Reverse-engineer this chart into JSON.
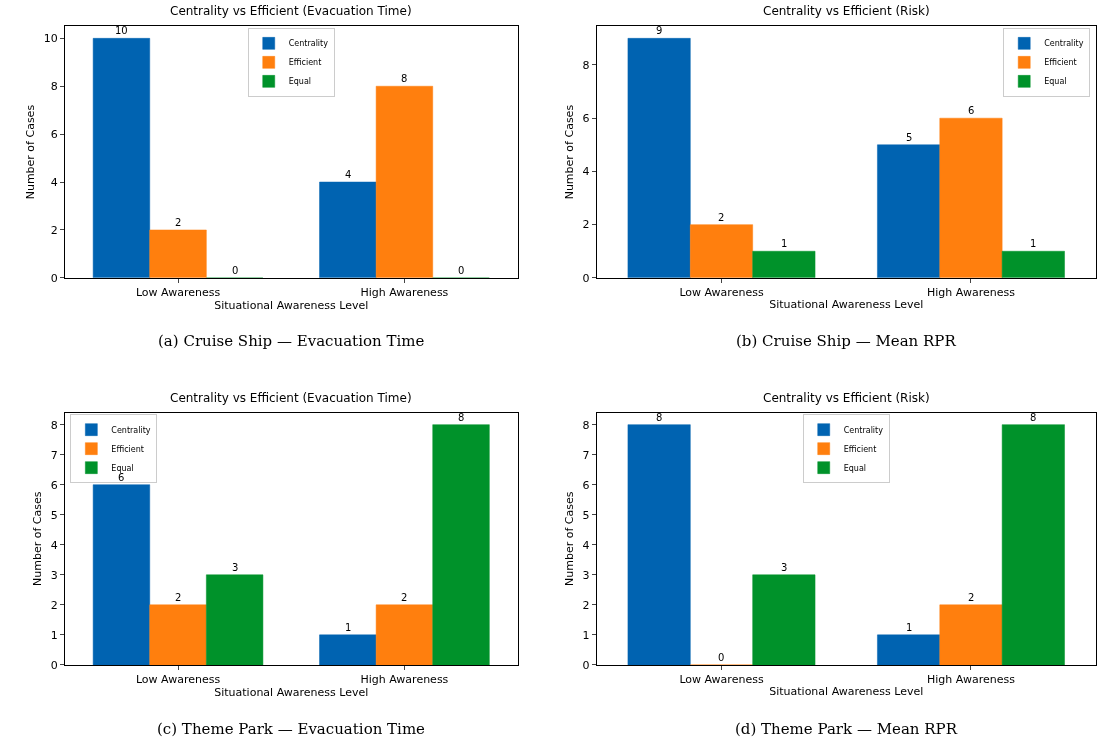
{
  "chart_data": [
    {
      "type": "bar",
      "title": "Centrality vs Efficient (Evacuation Time)",
      "xlabel": "Situational Awareness Level",
      "ylabel": "Number of Cases",
      "categories": [
        "Low Awareness",
        "High Awareness"
      ],
      "series": [
        {
          "name": "Centrality",
          "color": "#0063b1",
          "values": [
            10,
            4
          ]
        },
        {
          "name": "Efficient",
          "color": "#ff7f0e",
          "values": [
            2,
            8
          ]
        },
        {
          "name": "Equal",
          "color": "#00922a",
          "values": [
            0,
            0
          ]
        }
      ],
      "ylim": [
        0,
        10.5
      ],
      "yticks": [
        0,
        2,
        4,
        6,
        8,
        10
      ],
      "data_labels": true,
      "legend": "top",
      "annotations": [
        "(a) Cruise Ship — Evacuation Time"
      ]
    },
    {
      "type": "bar",
      "title": "Centrality vs Efficient (Risk)",
      "xlabel": "Situational Awareness Level",
      "ylabel": "Number of Cases",
      "categories": [
        "Low Awareness",
        "High Awareness"
      ],
      "series": [
        {
          "name": "Centrality",
          "color": "#0063b1",
          "values": [
            9,
            5
          ]
        },
        {
          "name": "Efficient",
          "color": "#ff7f0e",
          "values": [
            2,
            6
          ]
        },
        {
          "name": "Equal",
          "color": "#00922a",
          "values": [
            1,
            1
          ]
        }
      ],
      "ylim": [
        0,
        9.45
      ],
      "yticks": [
        0,
        2,
        4,
        6,
        8
      ],
      "data_labels": true,
      "legend": "top right",
      "annotations": [
        "(b) Cruise Ship — Mean RPR"
      ]
    },
    {
      "type": "bar",
      "title": "Centrality vs Efficient (Evacuation Time)",
      "xlabel": "Situational Awareness Level",
      "ylabel": "Number of Cases",
      "categories": [
        "Low Awareness",
        "High Awareness"
      ],
      "series": [
        {
          "name": "Centrality",
          "color": "#0063b1",
          "values": [
            6,
            1
          ]
        },
        {
          "name": "Efficient",
          "color": "#ff7f0e",
          "values": [
            2,
            2
          ]
        },
        {
          "name": "Equal",
          "color": "#00922a",
          "values": [
            3,
            8
          ]
        }
      ],
      "ylim": [
        0,
        8.4
      ],
      "yticks": [
        0,
        1,
        2,
        3,
        4,
        5,
        6,
        7,
        8
      ],
      "data_labels": true,
      "legend": "top left",
      "annotations": [
        "(c) Theme Park — Evacuation Time"
      ]
    },
    {
      "type": "bar",
      "title": "Centrality vs Efficient (Risk)",
      "xlabel": "Situational Awareness Level",
      "ylabel": "Number of Cases",
      "categories": [
        "Low Awareness",
        "High Awareness"
      ],
      "series": [
        {
          "name": "Centrality",
          "color": "#0063b1",
          "values": [
            8,
            1
          ]
        },
        {
          "name": "Efficient",
          "color": "#ff7f0e",
          "values": [
            0,
            2
          ]
        },
        {
          "name": "Equal",
          "color": "#00922a",
          "values": [
            3,
            8
          ]
        }
      ],
      "ylim": [
        0,
        8.4
      ],
      "yticks": [
        0,
        1,
        2,
        3,
        4,
        5,
        6,
        7,
        8
      ],
      "data_labels": true,
      "legend": "top",
      "annotations": [
        "(d) Theme Park — Mean RPR"
      ]
    }
  ]
}
